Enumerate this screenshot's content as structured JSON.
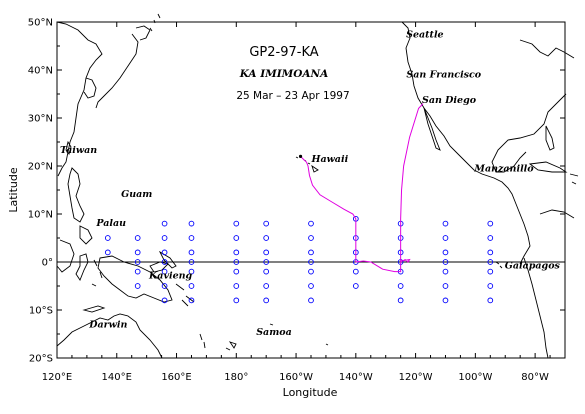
{
  "titles": {
    "cruise_id": "GP2-97-KA",
    "ship": "KA IMIMOANA",
    "dates": "25 Mar – 23 Apr 1997"
  },
  "axes": {
    "xlabel": "Longitude",
    "ylabel": "Latitude",
    "lon_range": [
      120,
      290
    ],
    "lat_range": [
      -20,
      50
    ],
    "x_ticks": [
      {
        "lon": 120,
        "label": "120°E"
      },
      {
        "lon": 140,
        "label": "140°E"
      },
      {
        "lon": 160,
        "label": "160°E"
      },
      {
        "lon": 180,
        "label": "180°"
      },
      {
        "lon": 200,
        "label": "160°W"
      },
      {
        "lon": 220,
        "label": "140°W"
      },
      {
        "lon": 240,
        "label": "120°W"
      },
      {
        "lon": 260,
        "label": "100°W"
      },
      {
        "lon": 280,
        "label": "80°W"
      }
    ],
    "y_ticks": [
      {
        "lat": 50,
        "label": "50°N"
      },
      {
        "lat": 40,
        "label": "40°N"
      },
      {
        "lat": 30,
        "label": "30°N"
      },
      {
        "lat": 20,
        "label": "20°N"
      },
      {
        "lat": 10,
        "label": "10°N"
      },
      {
        "lat": 0,
        "label": "0°"
      },
      {
        "lat": -10,
        "label": "10°S"
      },
      {
        "lat": -20,
        "label": "20°S"
      }
    ]
  },
  "places": [
    {
      "name": "Seattle",
      "lon": 237.5,
      "lat": 47.6
    },
    {
      "name": "San Francisco",
      "lon": 237.6,
      "lat": 37.8
    },
    {
      "name": "San Diego",
      "lon": 242.8,
      "lat": 32.7
    },
    {
      "name": "Taiwan",
      "lon": 121.0,
      "lat": 23.5
    },
    {
      "name": "Hawaii",
      "lon": 204.5,
      "lat": 21.0
    },
    {
      "name": "Manzanillo",
      "lon": 261.7,
      "lat": 19.1
    },
    {
      "name": "Guam",
      "lon": 144.8,
      "lat": 13.5
    },
    {
      "name": "Palau",
      "lon": 134.5,
      "lat": 7.5
    },
    {
      "name": "Galapagos",
      "lon": 270.5,
      "lat": -0.5
    },
    {
      "name": "Kavieng",
      "lon": 150.8,
      "lat": -2.6
    },
    {
      "name": "Darwin",
      "lon": 130.8,
      "lat": -12.4
    },
    {
      "name": "Samoa",
      "lon": 188.0,
      "lat": -14.0
    }
  ],
  "colors": {
    "track": "#e000e0",
    "moorings": "#0000ff",
    "coast": "#000000",
    "equator": "#000000"
  },
  "mooring_arrays": [
    {
      "lon": 137,
      "lats": [
        5,
        2
      ]
    },
    {
      "lon": 147,
      "lats": [
        5,
        2,
        0,
        -2,
        -5
      ]
    },
    {
      "lon": 156,
      "lats": [
        8,
        5,
        2,
        0,
        -2,
        -5,
        -8
      ]
    },
    {
      "lon": 165,
      "lats": [
        8,
        5,
        2,
        0,
        -2,
        -5,
        -8
      ]
    },
    {
      "lon": 180,
      "lats": [
        8,
        5,
        2,
        0,
        -2,
        -5,
        -8
      ]
    },
    {
      "lon": 190,
      "lats": [
        8,
        5,
        2,
        0,
        -2,
        -5,
        -8
      ]
    },
    {
      "lon": 205,
      "lats": [
        8,
        5,
        2,
        0,
        -2,
        -5,
        -8
      ]
    },
    {
      "lon": 220,
      "lats": [
        9,
        5,
        2,
        0,
        -2,
        -5
      ]
    },
    {
      "lon": 235,
      "lats": [
        8,
        5,
        2,
        0,
        -2,
        -5,
        -8
      ]
    },
    {
      "lon": 250,
      "lats": [
        8,
        5,
        2,
        0,
        -2,
        -5,
        -8
      ]
    },
    {
      "lon": 265,
      "lats": [
        8,
        5,
        2,
        0,
        -2,
        -5,
        -8
      ]
    }
  ],
  "cruise_track": [
    [
      201.5,
      22.0
    ],
    [
      202.8,
      21.2
    ],
    [
      203.5,
      20.8
    ],
    [
      204.0,
      20.0
    ],
    [
      204.5,
      18.0
    ],
    [
      205.5,
      16.0
    ],
    [
      208.0,
      14.0
    ],
    [
      212.0,
      12.5
    ],
    [
      216.0,
      11.0
    ],
    [
      219.0,
      10.0
    ],
    [
      220.0,
      9.0
    ],
    [
      220.0,
      5.0
    ],
    [
      220.0,
      2.0
    ],
    [
      220.0,
      0.0
    ],
    [
      222.5,
      0.2
    ],
    [
      225.0,
      0.0
    ],
    [
      229.0,
      -1.5
    ],
    [
      233.0,
      -2.0
    ],
    [
      235.0,
      -2.0
    ],
    [
      235.0,
      0.0
    ],
    [
      236.5,
      0.5
    ],
    [
      237.5,
      0.0
    ],
    [
      238.0,
      0.5
    ],
    [
      235.0,
      0.2
    ],
    [
      235.0,
      2.0
    ],
    [
      235.0,
      5.0
    ],
    [
      235.0,
      9.0
    ],
    [
      235.3,
      15.0
    ],
    [
      236.0,
      20.0
    ],
    [
      238.0,
      26.0
    ],
    [
      240.0,
      30.0
    ],
    [
      241.0,
      32.0
    ],
    [
      242.5,
      33.0
    ]
  ]
}
